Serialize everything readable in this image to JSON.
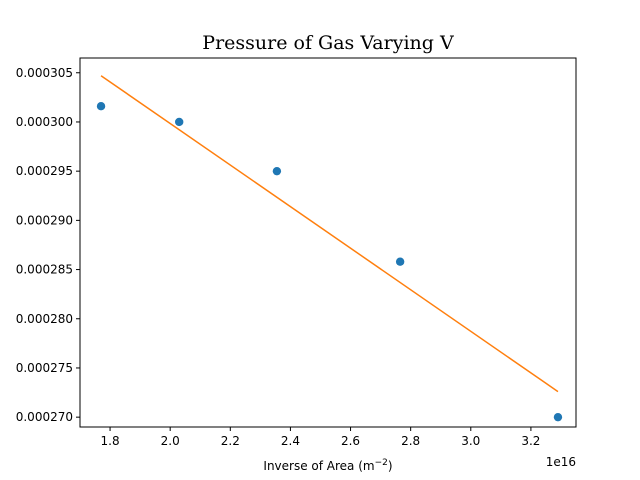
{
  "chart_data": {
    "type": "scatter",
    "title": "Pressure of Gas Varying V",
    "xlabel": "Inverse of Area (m",
    "xlabel_exponent": "−2",
    "xlabel_suffix": ")",
    "ylabel": "",
    "x_offset_text": "1e16",
    "xlim": [
      1.7,
      3.35
    ],
    "ylim": [
      0.000269,
      0.0003065
    ],
    "x_ticks": [
      1.8,
      2.0,
      2.2,
      2.4,
      2.6,
      2.8,
      3.0,
      3.2
    ],
    "x_tick_labels": [
      "1.8",
      "2.0",
      "2.2",
      "2.4",
      "2.6",
      "2.8",
      "3.0",
      "3.2"
    ],
    "y_ticks": [
      0.00027,
      0.000275,
      0.00028,
      0.000285,
      0.00029,
      0.000295,
      0.0003,
      0.000305
    ],
    "y_tick_labels": [
      "0.000270",
      "0.000275",
      "0.000280",
      "0.000285",
      "0.000290",
      "0.000295",
      "0.000300",
      "0.000305"
    ],
    "grid": false,
    "series": [
      {
        "kind": "scatter",
        "color": "#1f77b4",
        "x": [
          1.77,
          2.03,
          2.355,
          2.765,
          3.29
        ],
        "y": [
          0.0003016,
          0.0003,
          0.000295,
          0.0002858,
          0.00027
        ]
      },
      {
        "kind": "line",
        "color": "#ff7f0e",
        "x": [
          1.77,
          3.29
        ],
        "y": [
          0.0003047,
          0.0002726
        ]
      }
    ]
  }
}
